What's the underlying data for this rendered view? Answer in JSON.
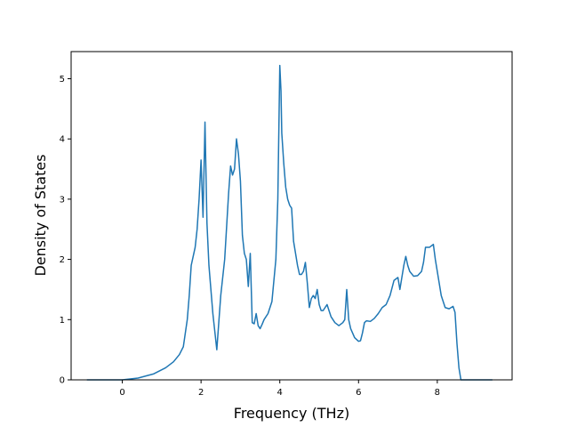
{
  "chart_data": {
    "type": "line",
    "title": "",
    "xlabel": "Frequency (THz)",
    "ylabel": "Density of States",
    "xlim": [
      -1.3,
      9.9
    ],
    "ylim": [
      0,
      5.45
    ],
    "xticks": [
      0,
      2,
      4,
      6,
      8
    ],
    "yticks": [
      0,
      1,
      2,
      3,
      4,
      5
    ],
    "grid": false,
    "legend": "none",
    "series": [
      {
        "name": "",
        "color": "#1f77b4",
        "x": [
          -0.9,
          0.0,
          0.4,
          0.8,
          1.1,
          1.3,
          1.45,
          1.55,
          1.65,
          1.7,
          1.75,
          1.8,
          1.85,
          1.9,
          1.95,
          2.0,
          2.05,
          2.1,
          2.15,
          2.2,
          2.25,
          2.3,
          2.4,
          2.5,
          2.6,
          2.7,
          2.75,
          2.8,
          2.85,
          2.9,
          2.95,
          3.0,
          3.05,
          3.1,
          3.15,
          3.2,
          3.25,
          3.3,
          3.35,
          3.4,
          3.45,
          3.5,
          3.55,
          3.6,
          3.7,
          3.8,
          3.9,
          3.95,
          4.0,
          4.03,
          4.05,
          4.1,
          4.15,
          4.2,
          4.25,
          4.3,
          4.35,
          4.4,
          4.45,
          4.5,
          4.55,
          4.6,
          4.65,
          4.7,
          4.75,
          4.8,
          4.85,
          4.9,
          4.95,
          5.0,
          5.05,
          5.1,
          5.15,
          5.2,
          5.25,
          5.3,
          5.4,
          5.5,
          5.6,
          5.65,
          5.7,
          5.75,
          5.8,
          5.9,
          6.0,
          6.05,
          6.1,
          6.15,
          6.2,
          6.3,
          6.4,
          6.5,
          6.6,
          6.7,
          6.8,
          6.9,
          7.0,
          7.05,
          7.1,
          7.15,
          7.2,
          7.25,
          7.3,
          7.4,
          7.5,
          7.6,
          7.65,
          7.7,
          7.75,
          7.8,
          7.9,
          7.95,
          8.0,
          8.05,
          8.1,
          8.2,
          8.3,
          8.4,
          8.45,
          8.5,
          8.55,
          8.6,
          8.7,
          9.0,
          9.4
        ],
        "y": [
          0.0,
          0.0,
          0.03,
          0.1,
          0.2,
          0.3,
          0.42,
          0.55,
          1.0,
          1.4,
          1.9,
          2.05,
          2.2,
          2.5,
          3.0,
          3.65,
          2.7,
          4.28,
          2.6,
          1.9,
          1.5,
          1.1,
          0.5,
          1.4,
          2.0,
          3.1,
          3.55,
          3.4,
          3.5,
          4.0,
          3.75,
          3.3,
          2.4,
          2.1,
          2.0,
          1.55,
          2.1,
          0.95,
          0.93,
          1.1,
          0.9,
          0.85,
          0.92,
          1.0,
          1.1,
          1.3,
          2.0,
          3.0,
          5.22,
          4.8,
          4.1,
          3.6,
          3.2,
          3.0,
          2.9,
          2.85,
          2.3,
          2.1,
          1.9,
          1.75,
          1.75,
          1.8,
          1.95,
          1.6,
          1.2,
          1.35,
          1.4,
          1.35,
          1.5,
          1.25,
          1.15,
          1.15,
          1.2,
          1.25,
          1.15,
          1.05,
          0.95,
          0.9,
          0.95,
          1.0,
          1.5,
          1.0,
          0.85,
          0.7,
          0.64,
          0.65,
          0.78,
          0.95,
          0.98,
          0.97,
          1.02,
          1.1,
          1.2,
          1.25,
          1.4,
          1.65,
          1.7,
          1.5,
          1.7,
          1.9,
          2.05,
          1.9,
          1.8,
          1.72,
          1.73,
          1.8,
          1.95,
          2.2,
          2.2,
          2.2,
          2.25,
          2.0,
          1.8,
          1.6,
          1.4,
          1.2,
          1.18,
          1.22,
          1.12,
          0.6,
          0.2,
          0.0,
          0.0,
          0.0,
          0.0
        ]
      }
    ]
  }
}
